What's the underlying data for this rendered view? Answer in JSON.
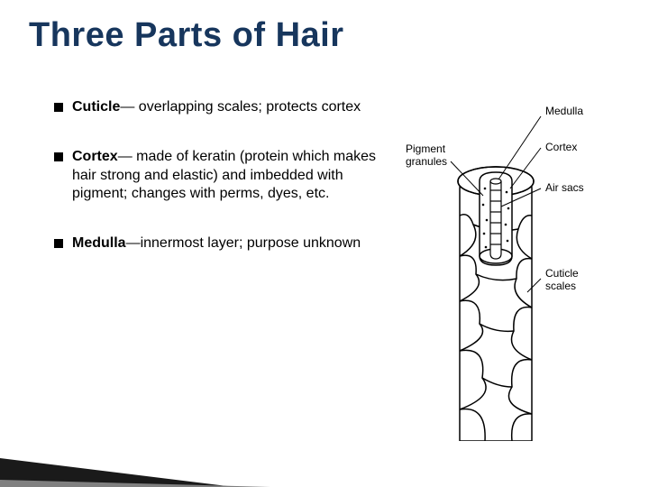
{
  "title": "Three Parts of Hair",
  "bullets": [
    {
      "term": "Cuticle",
      "desc": "— overlapping scales; protects cortex"
    },
    {
      "term": "Cortex",
      "desc": "— made of keratin (protein which makes hair strong and elastic) and imbedded with pigment; changes with perms, dyes, etc."
    },
    {
      "term": "Medulla",
      "desc": "—innermost layer; purpose unknown"
    }
  ],
  "diagram": {
    "labels": {
      "pigment": "Pigment\ngranules",
      "medulla": "Medulla",
      "cortex": "Cortex",
      "airsacs": "Air sacs",
      "cuticle": "Cuticle\nscales"
    },
    "colors": {
      "stroke": "#000000",
      "fill": "#ffffff",
      "text": "#000000"
    },
    "label_fontsize": 12
  },
  "colors": {
    "title": "#17365d",
    "text": "#000000",
    "background": "#ffffff",
    "decor_dark": "#1a1a1a",
    "decor_grey": "#808080"
  }
}
